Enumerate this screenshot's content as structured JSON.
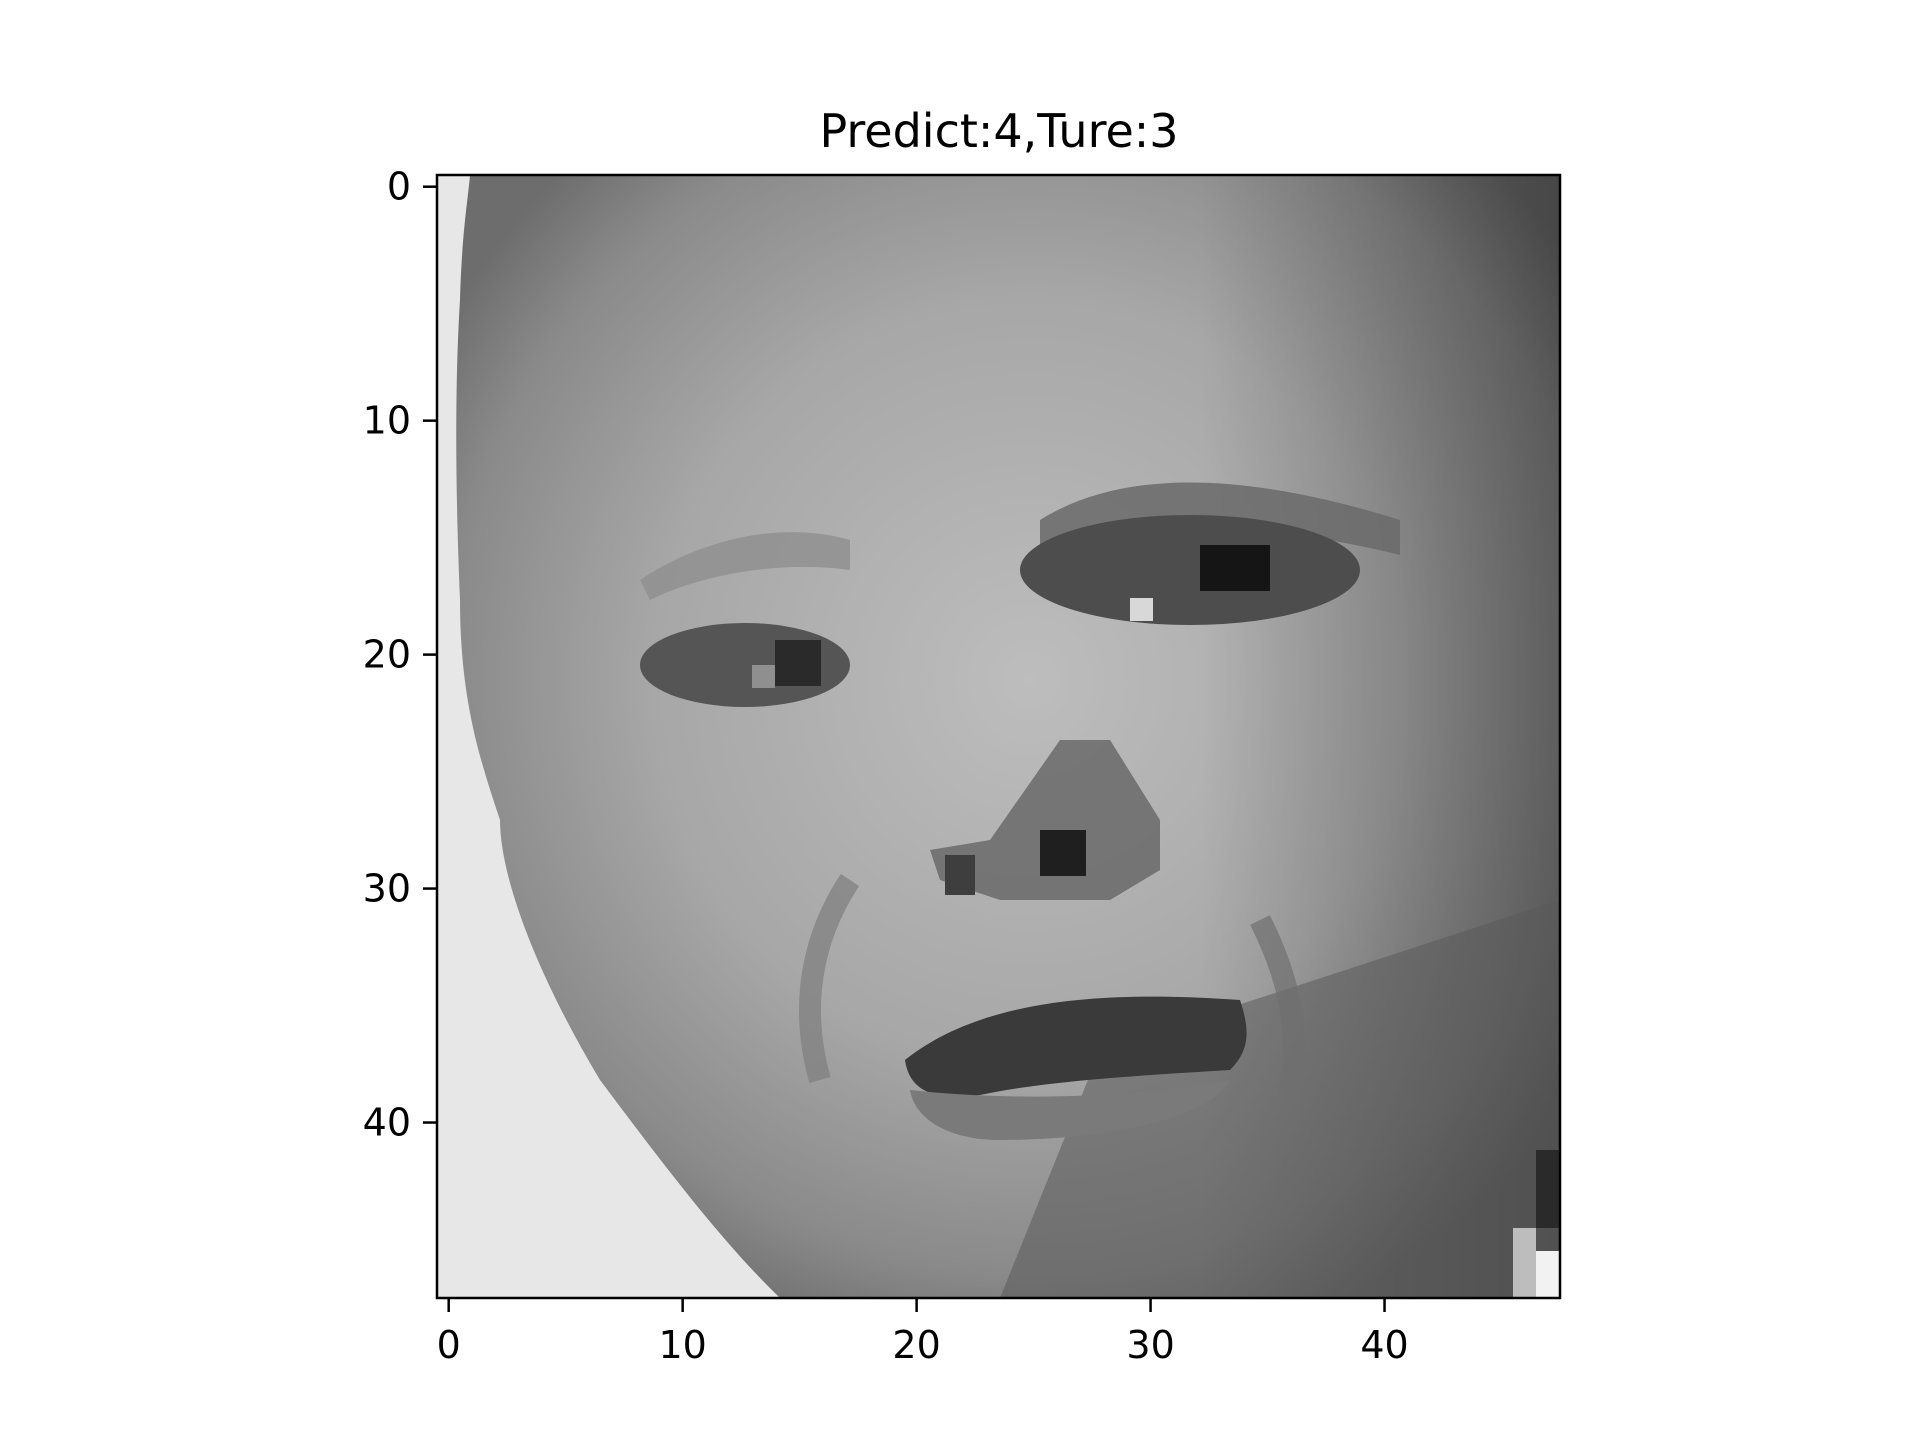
{
  "figure": {
    "title": "Predict:4,Ture:3"
  },
  "image_axes": {
    "grid_size": [
      48,
      48
    ],
    "colormap": "gray",
    "subject": "grayscale-face",
    "x_ticks": [
      "0",
      "10",
      "20",
      "30",
      "40"
    ],
    "y_ticks": [
      "0",
      "10",
      "20",
      "30",
      "40"
    ],
    "x_tick_values": [
      0,
      10,
      20,
      30,
      40
    ],
    "y_tick_values": [
      0,
      10,
      20,
      30,
      40
    ]
  },
  "colors": {
    "axis": "#000000",
    "background": "#ffffff",
    "light_bg": "#e6e6e6",
    "skin": "#a8a8a8",
    "shadow": "#6f6f6f",
    "dark": "#202020"
  }
}
